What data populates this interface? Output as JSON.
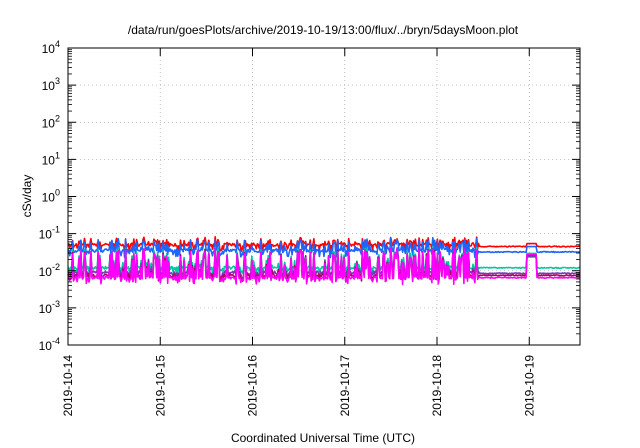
{
  "chart_data": {
    "type": "line",
    "title": "/data/run/goesPlots/archive/2019-10-19/13:00/flux/../bryn/5daysMoon.plot",
    "xlabel": "Coordinated Universal Time (UTC)",
    "ylabel": "cSv/day",
    "y_scale": "log",
    "ylim_exponents": [
      -4,
      4
    ],
    "y_base": "10",
    "y_tick_exponents": [
      "-4",
      "-3",
      "-2",
      "-1",
      "0",
      "1",
      "2",
      "3",
      "4"
    ],
    "xlim_days": [
      0,
      5.55
    ],
    "x_ticks": [
      {
        "label": "2019-10-14",
        "day": 0
      },
      {
        "label": "2019-10-15",
        "day": 1
      },
      {
        "label": "2019-10-16",
        "day": 2
      },
      {
        "label": "2019-10-17",
        "day": 3
      },
      {
        "label": "2019-10-18",
        "day": 4
      },
      {
        "label": "2019-10-19",
        "day": 5
      }
    ],
    "grid": true,
    "legend": "none",
    "series": [
      {
        "color": "#ff0000",
        "baseline": 0.05,
        "burst_factor": 1.5,
        "late_baseline": 0.045
      },
      {
        "color": "#1e64ff",
        "baseline": 0.035,
        "burst_factor": 2.0,
        "late_baseline": 0.032
      },
      {
        "color": "#00c8a0",
        "baseline": 0.012,
        "burst_factor": 3.5,
        "late_baseline": 0.012
      },
      {
        "color": "#7040b0",
        "baseline": 0.009,
        "burst_factor": 4.0,
        "late_baseline": 0.0085
      },
      {
        "color": "#b00060",
        "baseline": 0.0075,
        "burst_factor": 5.0,
        "late_baseline": 0.0075
      },
      {
        "color": "#ff00ff",
        "baseline": 0.0065,
        "burst_factor": 6.0,
        "late_baseline": 0.0065
      }
    ]
  }
}
